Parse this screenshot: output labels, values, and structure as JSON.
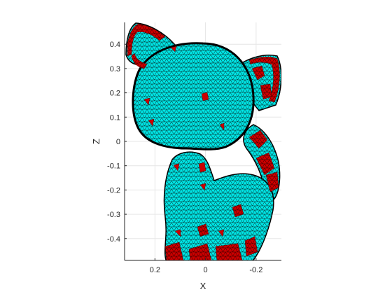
{
  "chart_data": {
    "type": "mesh",
    "xlabel": "X",
    "ylabel": "Z",
    "x_axis_reversed": true,
    "xlim": [
      -0.3,
      0.32
    ],
    "ylim": [
      -0.49,
      0.49
    ],
    "x_ticks": [
      {
        "value": 0.2,
        "label": "0.2"
      },
      {
        "value": 0.0,
        "label": "0"
      },
      {
        "value": -0.2,
        "label": "-0.2"
      }
    ],
    "y_ticks": [
      {
        "value": 0.4,
        "label": "0.4"
      },
      {
        "value": 0.3,
        "label": "0.3"
      },
      {
        "value": 0.2,
        "label": "0.2"
      },
      {
        "value": 0.1,
        "label": "0.1"
      },
      {
        "value": 0.0,
        "label": "0"
      },
      {
        "value": -0.1,
        "label": "-0.1"
      },
      {
        "value": -0.2,
        "label": "-0.2"
      },
      {
        "value": -0.3,
        "label": "-0.3"
      },
      {
        "value": -0.4,
        "label": "-0.4"
      }
    ],
    "grid": true,
    "colors": {
      "mesh_face": "#00e5e5",
      "mesh_edge": "#0a1a1a",
      "highlight_face": "#cc0000",
      "grid": "#e6e6e6",
      "axis": "#262626"
    }
  }
}
